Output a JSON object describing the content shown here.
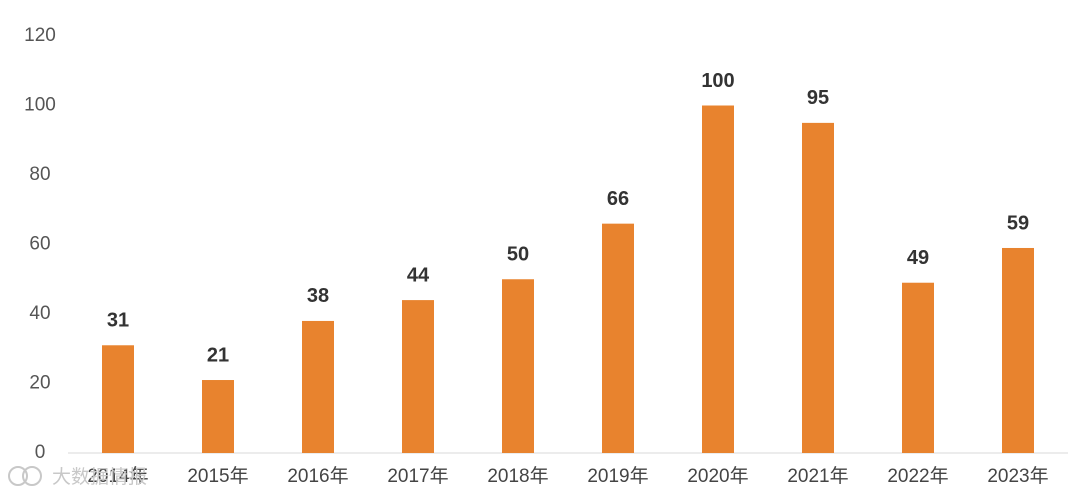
{
  "chart_data": {
    "type": "bar",
    "categories": [
      "2014年",
      "2015年",
      "2016年",
      "2017年",
      "2018年",
      "2019年",
      "2020年",
      "2021年",
      "2022年",
      "2023年"
    ],
    "values": [
      31,
      21,
      38,
      44,
      50,
      66,
      100,
      95,
      49,
      59
    ],
    "data_labels": [
      "31",
      "21",
      "38",
      "44",
      "50",
      "66",
      "100",
      "95",
      "49",
      "59"
    ],
    "title": "",
    "xlabel": "",
    "ylabel": "",
    "ylim": [
      0,
      120
    ],
    "yticks": [
      0,
      20,
      40,
      60,
      80,
      100,
      120
    ],
    "grid": false,
    "legend": "none",
    "bar_color": "#E8832E",
    "axis_color": "#d9d9d9"
  },
  "watermark": {
    "text": "大数据情报"
  }
}
